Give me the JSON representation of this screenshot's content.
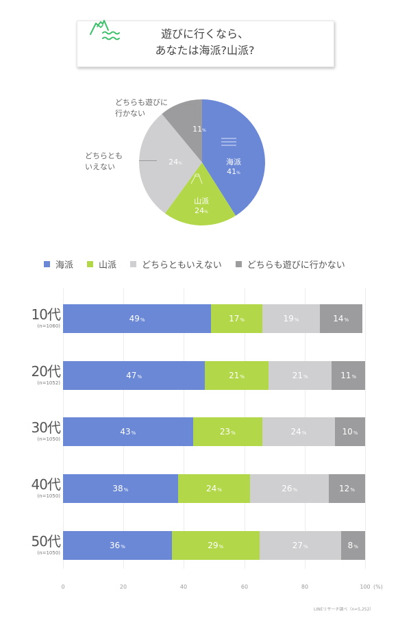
{
  "title": {
    "line1": "遊びに行くなら、",
    "line2": "あなたは海派?山派?",
    "icon": "mountain-and-waves-icon"
  },
  "colors": {
    "sea": "#6a88d6",
    "mountain": "#b2d84a",
    "neither": "#cfcfd1",
    "none": "#9c9c9e",
    "icon_green": "#3cc06a"
  },
  "pie": {
    "labels": {
      "none": [
        "どちらも遊びに",
        "行かない"
      ],
      "neither": [
        "どちらとも",
        "いえない"
      ]
    },
    "slices": [
      {
        "key": "sea",
        "label": "海派",
        "value": "41",
        "unit": "%"
      },
      {
        "key": "mountain",
        "label": "山派",
        "value": "24",
        "unit": "%"
      },
      {
        "key": "neither",
        "label": "どちらともいえない",
        "value": "24",
        "unit": "%"
      },
      {
        "key": "none",
        "label": "どちらも遊びに行かない",
        "value": "11",
        "unit": "%"
      }
    ]
  },
  "legend": [
    {
      "key": "sea",
      "label": "海派"
    },
    {
      "key": "mountain",
      "label": "山派"
    },
    {
      "key": "neither",
      "label": "どちらともいえない"
    },
    {
      "key": "none",
      "label": "どちらも遊びに行かない"
    }
  ],
  "bars": {
    "rows": [
      {
        "age": "10代",
        "n": "(n=1060)",
        "values": [
          "49",
          "17",
          "19",
          "14"
        ]
      },
      {
        "age": "20代",
        "n": "(n=1052)",
        "values": [
          "47",
          "21",
          "21",
          "11"
        ]
      },
      {
        "age": "30代",
        "n": "(n=1050)",
        "values": [
          "43",
          "23",
          "24",
          "10"
        ]
      },
      {
        "age": "40代",
        "n": "(n=1050)",
        "values": [
          "38",
          "24",
          "26",
          "12"
        ]
      },
      {
        "age": "50代",
        "n": "(n=1050)",
        "values": [
          "36",
          "29",
          "27",
          "8"
        ]
      }
    ],
    "pct_unit": "%",
    "ticks": [
      "0",
      "20",
      "40",
      "60",
      "80",
      "100"
    ],
    "axis_unit": "(%)"
  },
  "source": "LINEリサーチ調べ（n=5,252）",
  "chart_data": [
    {
      "type": "pie",
      "title": "遊びに行くなら、あなたは海派?山派?",
      "categories": [
        "海派",
        "山派",
        "どちらともいえない",
        "どちらも遊びに行かない"
      ],
      "values": [
        41,
        24,
        24,
        11
      ],
      "unit": "%"
    },
    {
      "type": "bar",
      "orientation": "horizontal",
      "stacked": true,
      "categories": [
        "10代 (n=1060)",
        "20代 (n=1052)",
        "30代 (n=1050)",
        "40代 (n=1050)",
        "50代 (n=1050)"
      ],
      "series": [
        {
          "name": "海派",
          "values": [
            49,
            47,
            43,
            38,
            36
          ]
        },
        {
          "name": "山派",
          "values": [
            17,
            21,
            23,
            24,
            29
          ]
        },
        {
          "name": "どちらともいえない",
          "values": [
            19,
            21,
            24,
            26,
            27
          ]
        },
        {
          "name": "どちらも遊びに行かない",
          "values": [
            14,
            11,
            10,
            12,
            8
          ]
        }
      ],
      "xlabel": "(%)",
      "xlim": [
        0,
        100
      ],
      "xticks": [
        0,
        20,
        40,
        60,
        80,
        100
      ],
      "legend_position": "top",
      "grid": true,
      "source": "LINEリサーチ調べ（n=5,252）"
    }
  ]
}
